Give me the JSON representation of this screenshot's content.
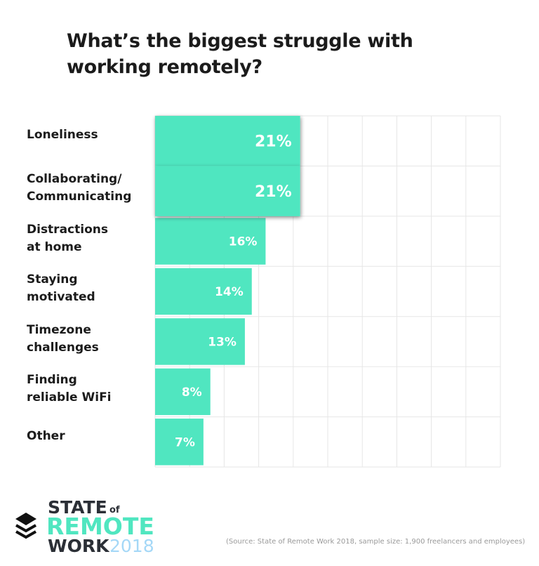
{
  "chart_data": {
    "type": "bar",
    "orientation": "horizontal",
    "title": "What’s the biggest struggle with working remotely?",
    "categories": [
      "Loneliness",
      "Collaborating/\nCommunicating",
      "Distractions\nat home",
      "Staying\nmotivated",
      "Timezone\nchallenges",
      "Finding\nreliable WiFi",
      "Other"
    ],
    "values": [
      21,
      21,
      16,
      14,
      13,
      8,
      7
    ],
    "data_labels": [
      "21%",
      "21%",
      "16%",
      "14%",
      "13%",
      "8%",
      "7%"
    ],
    "highlighted": [
      true,
      true,
      false,
      false,
      false,
      false,
      false
    ],
    "xlim": [
      0,
      50
    ],
    "grid": true,
    "bar_color": "#50e6c0",
    "unit": "%"
  },
  "logo": {
    "line1": "STATE",
    "of": "of",
    "line2": "REMOTE",
    "line3": "WORK",
    "year": "2018",
    "colors": {
      "dark": "#2b2f36",
      "green": "#50e6c0",
      "blue": "#a5d8f7"
    }
  },
  "source": "(Source: State of Remote Work 2018, sample size: 1,900 freelancers and employees)"
}
